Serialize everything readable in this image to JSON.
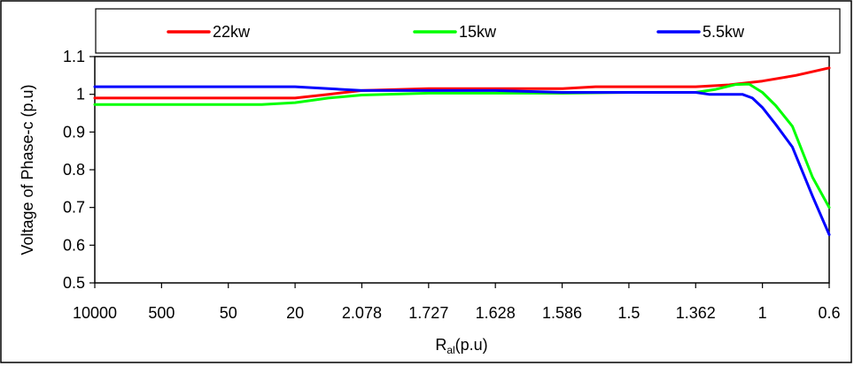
{
  "chart_data": {
    "type": "line",
    "categories": [
      "10000",
      "500",
      "50",
      "20",
      "2.078",
      "1.727",
      "1.628",
      "1.586",
      "1.5",
      "1.362",
      "1",
      "0.6"
    ],
    "y_ticks": [
      "0.5",
      "0.6",
      "0.7",
      "0.8",
      "0.9",
      "1",
      "1.1"
    ],
    "ylim": [
      0.5,
      1.1
    ],
    "ylabel": "Voltage of Phase-c (p.u)",
    "xlabel": {
      "main": "R",
      "sub": "al",
      "suffix": "(p.u)"
    },
    "legend_position": "top",
    "grid": false,
    "series": [
      {
        "name": "22kw",
        "color": "#ff0000",
        "points": [
          [
            0,
            0.99
          ],
          [
            1,
            0.99
          ],
          [
            2,
            0.99
          ],
          [
            3,
            0.99
          ],
          [
            3.5,
            1.0
          ],
          [
            4,
            1.01
          ],
          [
            5,
            1.015
          ],
          [
            6,
            1.015
          ],
          [
            7,
            1.015
          ],
          [
            7.5,
            1.02
          ],
          [
            8,
            1.02
          ],
          [
            9,
            1.02
          ],
          [
            9.5,
            1.025
          ],
          [
            10,
            1.035
          ],
          [
            10.5,
            1.05
          ],
          [
            11,
            1.07
          ]
        ]
      },
      {
        "name": "15kw",
        "color": "#00ff00",
        "points": [
          [
            0,
            0.973
          ],
          [
            1,
            0.973
          ],
          [
            2,
            0.973
          ],
          [
            2.5,
            0.973
          ],
          [
            3,
            0.978
          ],
          [
            3.5,
            0.99
          ],
          [
            4,
            0.998
          ],
          [
            5,
            1.003
          ],
          [
            6,
            1.003
          ],
          [
            7,
            1.003
          ],
          [
            8,
            1.005
          ],
          [
            9,
            1.005
          ],
          [
            9.3,
            1.013
          ],
          [
            9.6,
            1.026
          ],
          [
            9.8,
            1.027
          ],
          [
            10,
            1.005
          ],
          [
            10.2,
            0.97
          ],
          [
            10.45,
            0.915
          ],
          [
            10.75,
            0.78
          ],
          [
            11,
            0.7
          ]
        ]
      },
      {
        "name": "5.5kw",
        "color": "#0000ff",
        "points": [
          [
            0,
            1.02
          ],
          [
            1,
            1.02
          ],
          [
            2,
            1.02
          ],
          [
            3,
            1.02
          ],
          [
            3.5,
            1.015
          ],
          [
            4,
            1.01
          ],
          [
            5,
            1.01
          ],
          [
            6,
            1.01
          ],
          [
            7,
            1.005
          ],
          [
            8,
            1.005
          ],
          [
            9,
            1.005
          ],
          [
            9.2,
            1.0
          ],
          [
            9.5,
            1.0
          ],
          [
            9.7,
            1.0
          ],
          [
            9.85,
            0.99
          ],
          [
            10,
            0.965
          ],
          [
            10.2,
            0.92
          ],
          [
            10.45,
            0.86
          ],
          [
            10.75,
            0.73
          ],
          [
            11,
            0.628
          ]
        ]
      }
    ]
  }
}
